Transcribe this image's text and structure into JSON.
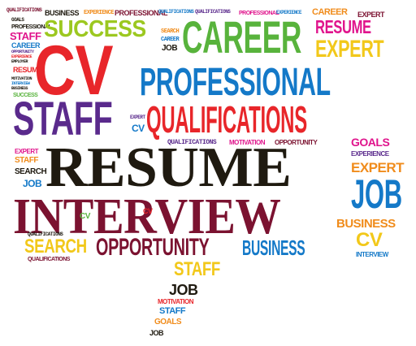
{
  "cloud": {
    "palette": {
      "dark": "#1f1a10",
      "maroon": "#7b1230",
      "magenta": "#e0148c",
      "blue": "#1479c8",
      "purple": "#5a2a8c",
      "orange": "#f08c1c",
      "yellow": "#f2c81a",
      "green": "#58b33c",
      "lime": "#9cc820",
      "red": "#e8262a",
      "teal": "#1aa0a8"
    },
    "words": {
      "resume_big": "RESUME",
      "interview_big": "INTERVIEW",
      "cv_big": "CV",
      "career_big": "CAREER",
      "professional_big": "PROFESSIONAL",
      "qualifications_big": "QUALIFICATIONS",
      "staff_big": "STAFF",
      "success": "SUCCESS",
      "resume_top": "RESUME",
      "expert_top": "EXPERT",
      "career_top": "CAREER",
      "expert_top2": "EXPERT",
      "job_right": "JOB",
      "expert_right": "EXPERT",
      "goals_right": "GOALS",
      "experience_right": "EXPERIENCE",
      "business_right": "BUSINESS",
      "cv_right": "CV",
      "interview_right": "INTERVIEW",
      "opportunity_mid": "OPPORTUNITY",
      "business_mid": "BUSINESS",
      "search_left": "SEARCH",
      "qualifications_left": "QUALIFICATIONS",
      "staff_lower": "STAFF",
      "job_lower": "JOB",
      "motivation_lower": "MOTIVATION",
      "staff_tail": "STAFF",
      "goals_tail": "GOALS",
      "qualifications_strip": "QUALIFICATIONS",
      "motivation_strip": "MOTIVATION",
      "opportunity_strip": "OPPORTUNITY",
      "expert_left": "EXPERT",
      "staff_left": "STAFF",
      "search_left2": "SEARCH",
      "job_left": "JOB",
      "business_tl": "BUSINESS",
      "experience_tl": "EXPERIENCE",
      "professional_tl": "PROFESSIONAL",
      "qualifications_tl": "QUALIFICATIONS",
      "qualifications_tl2": "QUALIFICATIONS",
      "professional_tl2": "PROFESSIONAL",
      "experience_tl2": "EXPERIENCE",
      "goals_tl": "GOALS",
      "professional_l": "PROFESSIONAL",
      "staff_l": "STAFF",
      "career_l": "CAREER",
      "opportunity_l": "OPPORTUNITY",
      "experience_l": "EXPERIENCE",
      "employer_l": "EMPLOYER",
      "resume_l": "RESUME",
      "motivation_l": "MOTIVATION",
      "interview_l": "INTERVIEW",
      "business_l": "BUSINESS",
      "success_l": "SUCCESS",
      "job_top": "JOB",
      "search_top": "SEARCH",
      "career_top2": "CAREER",
      "job_top2": "JOB",
      "cv_small": "CV",
      "job_mid": "JOB",
      "cv_mid": "CV",
      "expert_mid": "EXPERT",
      "career_mid": "CAREER",
      "job_mid2": "JOB"
    }
  }
}
